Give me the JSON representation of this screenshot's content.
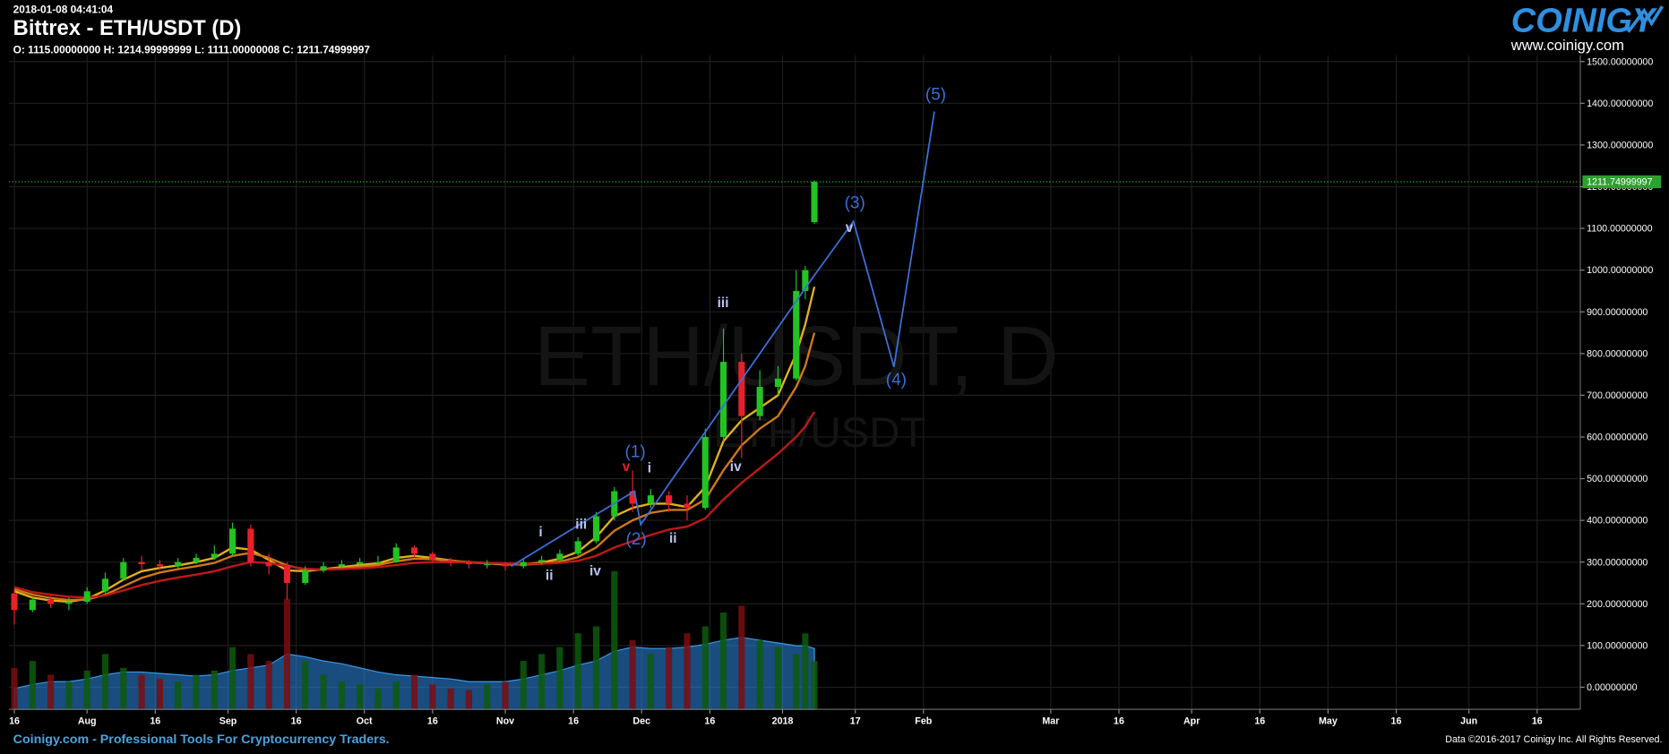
{
  "chart_data": {
    "type": "candlestick",
    "timestamp": "2018-01-08 04:41:04",
    "title": "Bittrex - ETH/USDT (D)",
    "ohlc": "O: 1115.00000000 H: 1214.99999999 L: 1111.00000008 C: 1211.74999997",
    "watermark": "ETH/USDT, D",
    "watermark_sub": "ETH/USDT",
    "last_price": 1211.74999997,
    "xlim": [
      -1.2,
      344.5
    ],
    "ylim": [
      -53,
      1515
    ],
    "grid": true,
    "xticks": [
      {
        "value": 0,
        "label": "16"
      },
      {
        "value": 16,
        "label": "Aug"
      },
      {
        "value": 31,
        "label": "16"
      },
      {
        "value": 47,
        "label": "Sep"
      },
      {
        "value": 62,
        "label": "16"
      },
      {
        "value": 77,
        "label": "Oct"
      },
      {
        "value": 92,
        "label": "16"
      },
      {
        "value": 108,
        "label": "Nov"
      },
      {
        "value": 123,
        "label": "16"
      },
      {
        "value": 138,
        "label": "Dec"
      },
      {
        "value": 153,
        "label": "16"
      },
      {
        "value": 169,
        "label": "2018"
      },
      {
        "value": 185,
        "label": "17"
      },
      {
        "value": 200,
        "label": "Feb"
      },
      {
        "value": 228,
        "label": "Mar"
      },
      {
        "value": 243,
        "label": "16"
      },
      {
        "value": 259,
        "label": "Apr"
      },
      {
        "value": 274,
        "label": "16"
      },
      {
        "value": 289,
        "label": "May"
      },
      {
        "value": 304,
        "label": "16"
      },
      {
        "value": 320,
        "label": "Jun"
      },
      {
        "value": 335,
        "label": "16"
      }
    ],
    "yticks": [
      {
        "value": 0,
        "label": "0.00000000"
      },
      {
        "value": 100,
        "label": "100.00000000"
      },
      {
        "value": 200,
        "label": "200.00000000"
      },
      {
        "value": 300,
        "label": "300.00000000"
      },
      {
        "value": 400,
        "label": "400.00000000"
      },
      {
        "value": 500,
        "label": "500.00000000"
      },
      {
        "value": 600,
        "label": "600.00000000"
      },
      {
        "value": 700,
        "label": "700.00000000"
      },
      {
        "value": 800,
        "label": "800.00000000"
      },
      {
        "value": 900,
        "label": "900.00000000"
      },
      {
        "value": 1000,
        "label": "1000.00000000"
      },
      {
        "value": 1100,
        "label": "1100.00000000"
      },
      {
        "value": 1200,
        "label": "1200.00000000"
      },
      {
        "value": 1300,
        "label": "1300.00000000"
      },
      {
        "value": 1400,
        "label": "1400.00000000"
      },
      {
        "value": 1500,
        "label": "1500.00000000"
      }
    ],
    "up_color": "#22c322",
    "down_color": "#e8202a",
    "x": [
      0,
      4,
      8,
      12,
      16,
      20,
      24,
      28,
      32,
      36,
      40,
      44,
      48,
      52,
      56,
      60,
      64,
      68,
      72,
      76,
      80,
      84,
      88,
      92,
      96,
      100,
      104,
      108,
      112,
      116,
      120,
      124,
      128,
      132,
      136,
      140,
      144,
      148,
      152,
      156,
      160,
      164,
      168,
      172,
      174,
      176
    ],
    "open": [
      225,
      185,
      210,
      200,
      205,
      230,
      260,
      300,
      295,
      290,
      300,
      310,
      320,
      380,
      300,
      290,
      250,
      280,
      290,
      295,
      300,
      300,
      335,
      320,
      305,
      300,
      295,
      295,
      290,
      300,
      305,
      320,
      350,
      410,
      470,
      440,
      460,
      440,
      430,
      600,
      780,
      650,
      720,
      740,
      950,
      1115
    ],
    "high": [
      235,
      215,
      220,
      215,
      240,
      275,
      310,
      315,
      305,
      310,
      320,
      340,
      395,
      390,
      320,
      300,
      290,
      300,
      305,
      310,
      315,
      345,
      340,
      325,
      310,
      305,
      305,
      300,
      310,
      315,
      330,
      360,
      420,
      480,
      520,
      475,
      470,
      460,
      620,
      860,
      800,
      760,
      770,
      1000,
      1010,
      1214.99999999
    ],
    "low": [
      150,
      180,
      190,
      185,
      200,
      225,
      255,
      280,
      280,
      285,
      295,
      305,
      315,
      290,
      270,
      210,
      245,
      275,
      285,
      290,
      295,
      298,
      310,
      300,
      290,
      285,
      285,
      280,
      285,
      295,
      300,
      315,
      345,
      400,
      420,
      430,
      420,
      400,
      425,
      590,
      550,
      640,
      700,
      735,
      930,
      1111.00000008
    ],
    "close": [
      185,
      210,
      200,
      205,
      230,
      260,
      300,
      295,
      290,
      300,
      310,
      320,
      380,
      300,
      290,
      250,
      280,
      290,
      295,
      300,
      300,
      335,
      320,
      305,
      300,
      295,
      295,
      290,
      300,
      305,
      320,
      350,
      410,
      470,
      440,
      460,
      440,
      430,
      600,
      780,
      650,
      720,
      740,
      950,
      1000,
      1211.74999997
    ],
    "series": [
      {
        "color": "#e0b020",
        "values": [
          230,
          215,
          208,
          205,
          212,
          232,
          258,
          278,
          286,
          292,
          300,
          310,
          335,
          330,
          305,
          280,
          278,
          283,
          288,
          293,
          297,
          310,
          315,
          310,
          304,
          299,
          297,
          294,
          295,
          299,
          308,
          325,
          360,
          410,
          430,
          440,
          440,
          432,
          480,
          590,
          640,
          670,
          700,
          800,
          870,
          960
        ]
      },
      {
        "color": "#d07818",
        "values": [
          235,
          222,
          214,
          209,
          210,
          222,
          242,
          262,
          275,
          283,
          290,
          298,
          315,
          322,
          310,
          292,
          282,
          282,
          285,
          289,
          293,
          302,
          308,
          307,
          303,
          300,
          298,
          295,
          294,
          296,
          301,
          312,
          335,
          375,
          400,
          418,
          425,
          425,
          450,
          520,
          580,
          620,
          650,
          720,
          770,
          850
        ]
      },
      {
        "color": "#c01818",
        "values": [
          240,
          228,
          222,
          217,
          215,
          220,
          232,
          245,
          255,
          263,
          270,
          278,
          290,
          300,
          298,
          290,
          284,
          282,
          283,
          285,
          288,
          293,
          298,
          300,
          300,
          299,
          298,
          297,
          296,
          296,
          298,
          303,
          315,
          335,
          350,
          365,
          378,
          385,
          405,
          450,
          490,
          525,
          560,
          600,
          625,
          660
        ]
      }
    ],
    "volume": [
      30,
      35,
      25,
      20,
      28,
      40,
      30,
      25,
      22,
      20,
      25,
      28,
      45,
      40,
      35,
      80,
      35,
      25,
      20,
      18,
      15,
      20,
      25,
      18,
      15,
      14,
      18,
      20,
      35,
      40,
      45,
      55,
      60,
      100,
      50,
      40,
      45,
      55,
      60,
      70,
      75,
      50,
      45,
      40,
      55,
      35
    ],
    "volume_ma": [
      15,
      18,
      20,
      20,
      22,
      25,
      27,
      27,
      26,
      25,
      24,
      25,
      28,
      30,
      32,
      40,
      38,
      35,
      33,
      30,
      27,
      25,
      24,
      23,
      22,
      20,
      20,
      20,
      22,
      25,
      28,
      32,
      35,
      42,
      45,
      44,
      44,
      45,
      47,
      50,
      52,
      50,
      48,
      46,
      46,
      44
    ],
    "wave_line": {
      "color": "#3a6fd8",
      "x": [
        109.3,
        136.4,
        137.8,
        175.5,
        184.6,
        193.5,
        202.4
      ],
      "y": [
        290,
        470,
        390,
        980,
        1117,
        768,
        1380
      ]
    },
    "annotations": [
      {
        "text": "(1)",
        "x": 136.6,
        "y": 552,
        "color": "#3a6fd8"
      },
      {
        "text": "(2)",
        "x": 136.8,
        "y": 342,
        "color": "#3a6fd8"
      },
      {
        "text": "(3)",
        "x": 184.9,
        "y": 1148,
        "color": "#3a6fd8"
      },
      {
        "text": "(4)",
        "x": 194.0,
        "y": 724,
        "color": "#3a6fd8"
      },
      {
        "text": "(5)",
        "x": 202.7,
        "y": 1408,
        "color": "#3a6fd8"
      },
      {
        "text": "i",
        "x": 115.8,
        "y": 362,
        "color": "#b8c4f0"
      },
      {
        "text": "ii",
        "x": 117.7,
        "y": 258,
        "color": "#b8c4f0"
      },
      {
        "text": "iii",
        "x": 124.7,
        "y": 380,
        "color": "#b8c4f0"
      },
      {
        "text": "iv",
        "x": 127.8,
        "y": 268,
        "color": "#b8c4f0"
      },
      {
        "text": "v",
        "x": 134.6,
        "y": 518,
        "color": "#e8202a"
      },
      {
        "text": "i",
        "x": 139.7,
        "y": 515,
        "color": "#b8c4f0"
      },
      {
        "text": "ii",
        "x": 144.9,
        "y": 347,
        "color": "#b8c4f0"
      },
      {
        "text": "iii",
        "x": 155.9,
        "y": 911,
        "color": "#b8c4f0"
      },
      {
        "text": "iv",
        "x": 158.7,
        "y": 518,
        "color": "#b8c4f0"
      },
      {
        "text": "v",
        "x": 183.7,
        "y": 1092,
        "color": "#b8c4f0"
      }
    ]
  },
  "branding": {
    "logo": "COINIGY",
    "url": "www.coinigy.com",
    "footer_left": "Coinigy.com - Professional Tools For Cryptocurrency Traders.",
    "footer_right": "Data ©2016-2017 Coinigy Inc. All Rights Reserved."
  }
}
